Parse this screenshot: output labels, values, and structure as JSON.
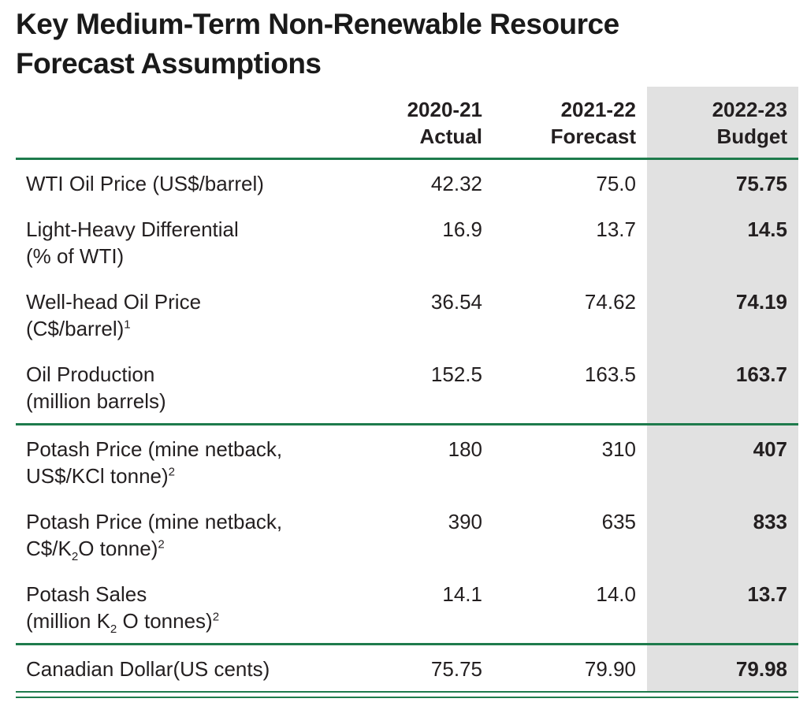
{
  "title": {
    "line1": "Key Medium-Term Non-Renewable Resource",
    "line2": "Forecast Assumptions"
  },
  "table": {
    "columns": [
      {
        "line1": "2020-21",
        "line2": "Actual"
      },
      {
        "line1": "2021-22",
        "line2": "Forecast"
      },
      {
        "line1": "2022-23",
        "line2": "Budget"
      }
    ],
    "rows": [
      {
        "label1": "WTI Oil Price (US$/barrel)",
        "actual": "42.32",
        "forecast": "75.0",
        "budget": "75.75"
      },
      {
        "label1": "Light-Heavy Differential",
        "l2a": "(% of WTI)",
        "actual": "16.9",
        "forecast": "13.7",
        "budget": "14.5"
      },
      {
        "label1": "Well-head Oil Price",
        "l2a": "(C$/barrel)",
        "l2sup": "1",
        "actual": "36.54",
        "forecast": "74.62",
        "budget": "74.19"
      },
      {
        "label1": "Oil Production",
        "l2a": "(million barrels)",
        "actual": "152.5",
        "forecast": "163.5",
        "budget": "163.7"
      },
      {
        "label1": "Potash Price (mine netback,",
        "l2a": "US$/KCl tonne)",
        "l2sup": "2",
        "actual": "180",
        "forecast": "310",
        "budget": "407"
      },
      {
        "label1": "Potash Price (mine netback,",
        "l2a": "C$/K",
        "l2sub": "2",
        "l2b": "O tonne)",
        "l2sup": "2",
        "actual": "390",
        "forecast": "635",
        "budget": "833"
      },
      {
        "label1": "Potash Sales",
        "l2a": "(million K",
        "l2sub": "2",
        "l2b": " O tonnes)",
        "l2sup": "2",
        "actual": "14.1",
        "forecast": "14.0",
        "budget": "13.7"
      },
      {
        "label1": "Canadian Dollar(US cents)",
        "actual": "75.75",
        "forecast": "79.90",
        "budget": "79.98"
      }
    ]
  },
  "colors": {
    "accent_green": "#1e7b4c",
    "budget_column_bg": "#e1e1e1",
    "text": "#231f20"
  }
}
